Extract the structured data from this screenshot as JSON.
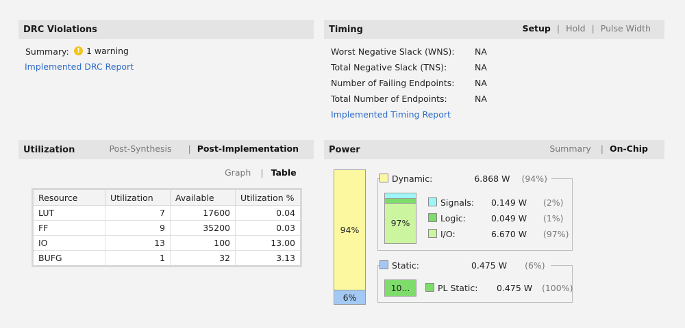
{
  "drc": {
    "title": "DRC Violations",
    "summary_label": "Summary:",
    "warning_icon": "warning-icon",
    "warning_text": "1 warning",
    "report_link": "Implemented DRC Report"
  },
  "timing": {
    "title": "Timing",
    "tabs": [
      "Setup",
      "Hold",
      "Pulse Width"
    ],
    "active_tab": "Setup",
    "rows": [
      {
        "label": "Worst Negative Slack (WNS):",
        "value": "NA"
      },
      {
        "label": "Total Negative Slack (TNS):",
        "value": "NA"
      },
      {
        "label": "Number of Failing Endpoints:",
        "value": "NA"
      },
      {
        "label": "Total Number of Endpoints:",
        "value": "NA"
      }
    ],
    "report_link": "Implemented Timing Report"
  },
  "utilization": {
    "title": "Utilization",
    "tabs": [
      "Post-Synthesis",
      "Post-Implementation"
    ],
    "active_tab": "Post-Implementation",
    "view_tabs": [
      "Graph",
      "Table"
    ],
    "active_view": "Table",
    "columns": [
      "Resource",
      "Utilization",
      "Available",
      "Utilization %"
    ],
    "rows": [
      [
        "LUT",
        "7",
        "17600",
        "0.04"
      ],
      [
        "FF",
        "9",
        "35200",
        "0.03"
      ],
      [
        "IO",
        "13",
        "100",
        "13.00"
      ],
      [
        "BUFG",
        "1",
        "32",
        "3.13"
      ]
    ]
  },
  "power": {
    "title": "Power",
    "tabs": [
      "Summary",
      "On-Chip"
    ],
    "active_tab": "On-Chip",
    "bar": {
      "dynamic_pct_label": "94%",
      "static_pct_label": "6%",
      "dynamic_fraction": 0.94
    },
    "dynamic": {
      "label": "Dynamic:",
      "value": "6.868 W",
      "pct": "(94%)"
    },
    "dyn_bar_label": "97%",
    "dyn_items": [
      {
        "label": "Signals:",
        "value": "0.149 W",
        "pct": "(2%)",
        "color": "#9ff5f5"
      },
      {
        "label": "Logic:",
        "value": "0.049 W",
        "pct": "(1%)",
        "color": "#7edc6a"
      },
      {
        "label": "I/O:",
        "value": "6.670 W",
        "pct": "(97%)",
        "color": "#ccf5a0"
      }
    ],
    "static": {
      "label": "Static:",
      "value": "0.475 W",
      "pct": "(6%)"
    },
    "static_bar_label": "10...",
    "static_items": [
      {
        "label": "PL Static:",
        "value": "0.475 W",
        "pct": "(100%)",
        "color": "#7edc6a"
      }
    ],
    "colors": {
      "dynamic": "#fcf8a0",
      "static": "#a3c8f3"
    }
  }
}
